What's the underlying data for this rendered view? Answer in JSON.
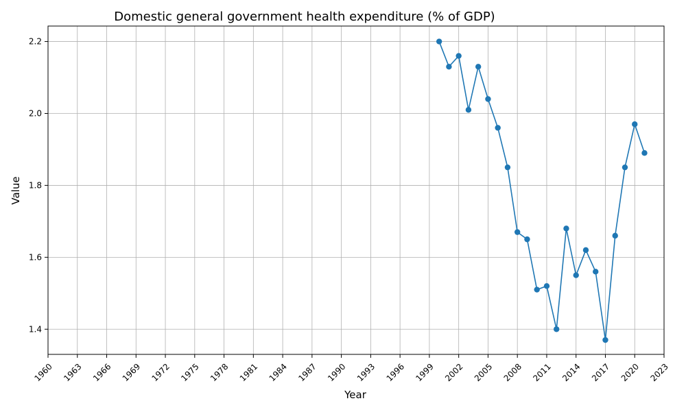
{
  "chart_data": {
    "type": "line",
    "title": "Domestic general government health expenditure (% of GDP)",
    "xlabel": "Year",
    "ylabel": "Value",
    "xlim": [
      1960,
      2023
    ],
    "ylim": [
      1.33,
      2.243
    ],
    "x_ticks": [
      1960,
      1963,
      1966,
      1969,
      1972,
      1975,
      1978,
      1981,
      1984,
      1987,
      1990,
      1993,
      1996,
      1999,
      2002,
      2005,
      2008,
      2011,
      2014,
      2017,
      2020,
      2023
    ],
    "y_ticks": [
      1.4,
      1.6,
      1.8,
      2.0,
      2.2
    ],
    "y_tick_labels": [
      "1.4",
      "1.6",
      "1.8",
      "2.0",
      "2.2"
    ],
    "grid": true,
    "series": [
      {
        "color": "#1f77b4",
        "marker": "circle",
        "x": [
          2000,
          2001,
          2002,
          2003,
          2004,
          2005,
          2006,
          2007,
          2008,
          2009,
          2010,
          2011,
          2012,
          2013,
          2014,
          2015,
          2016,
          2017,
          2018,
          2019,
          2020,
          2021
        ],
        "y": [
          2.2,
          2.13,
          2.16,
          2.01,
          2.13,
          2.04,
          1.96,
          1.85,
          1.67,
          1.65,
          1.51,
          1.52,
          1.4,
          1.68,
          1.55,
          1.62,
          1.56,
          1.37,
          1.66,
          1.85,
          1.97,
          1.89
        ]
      }
    ]
  }
}
